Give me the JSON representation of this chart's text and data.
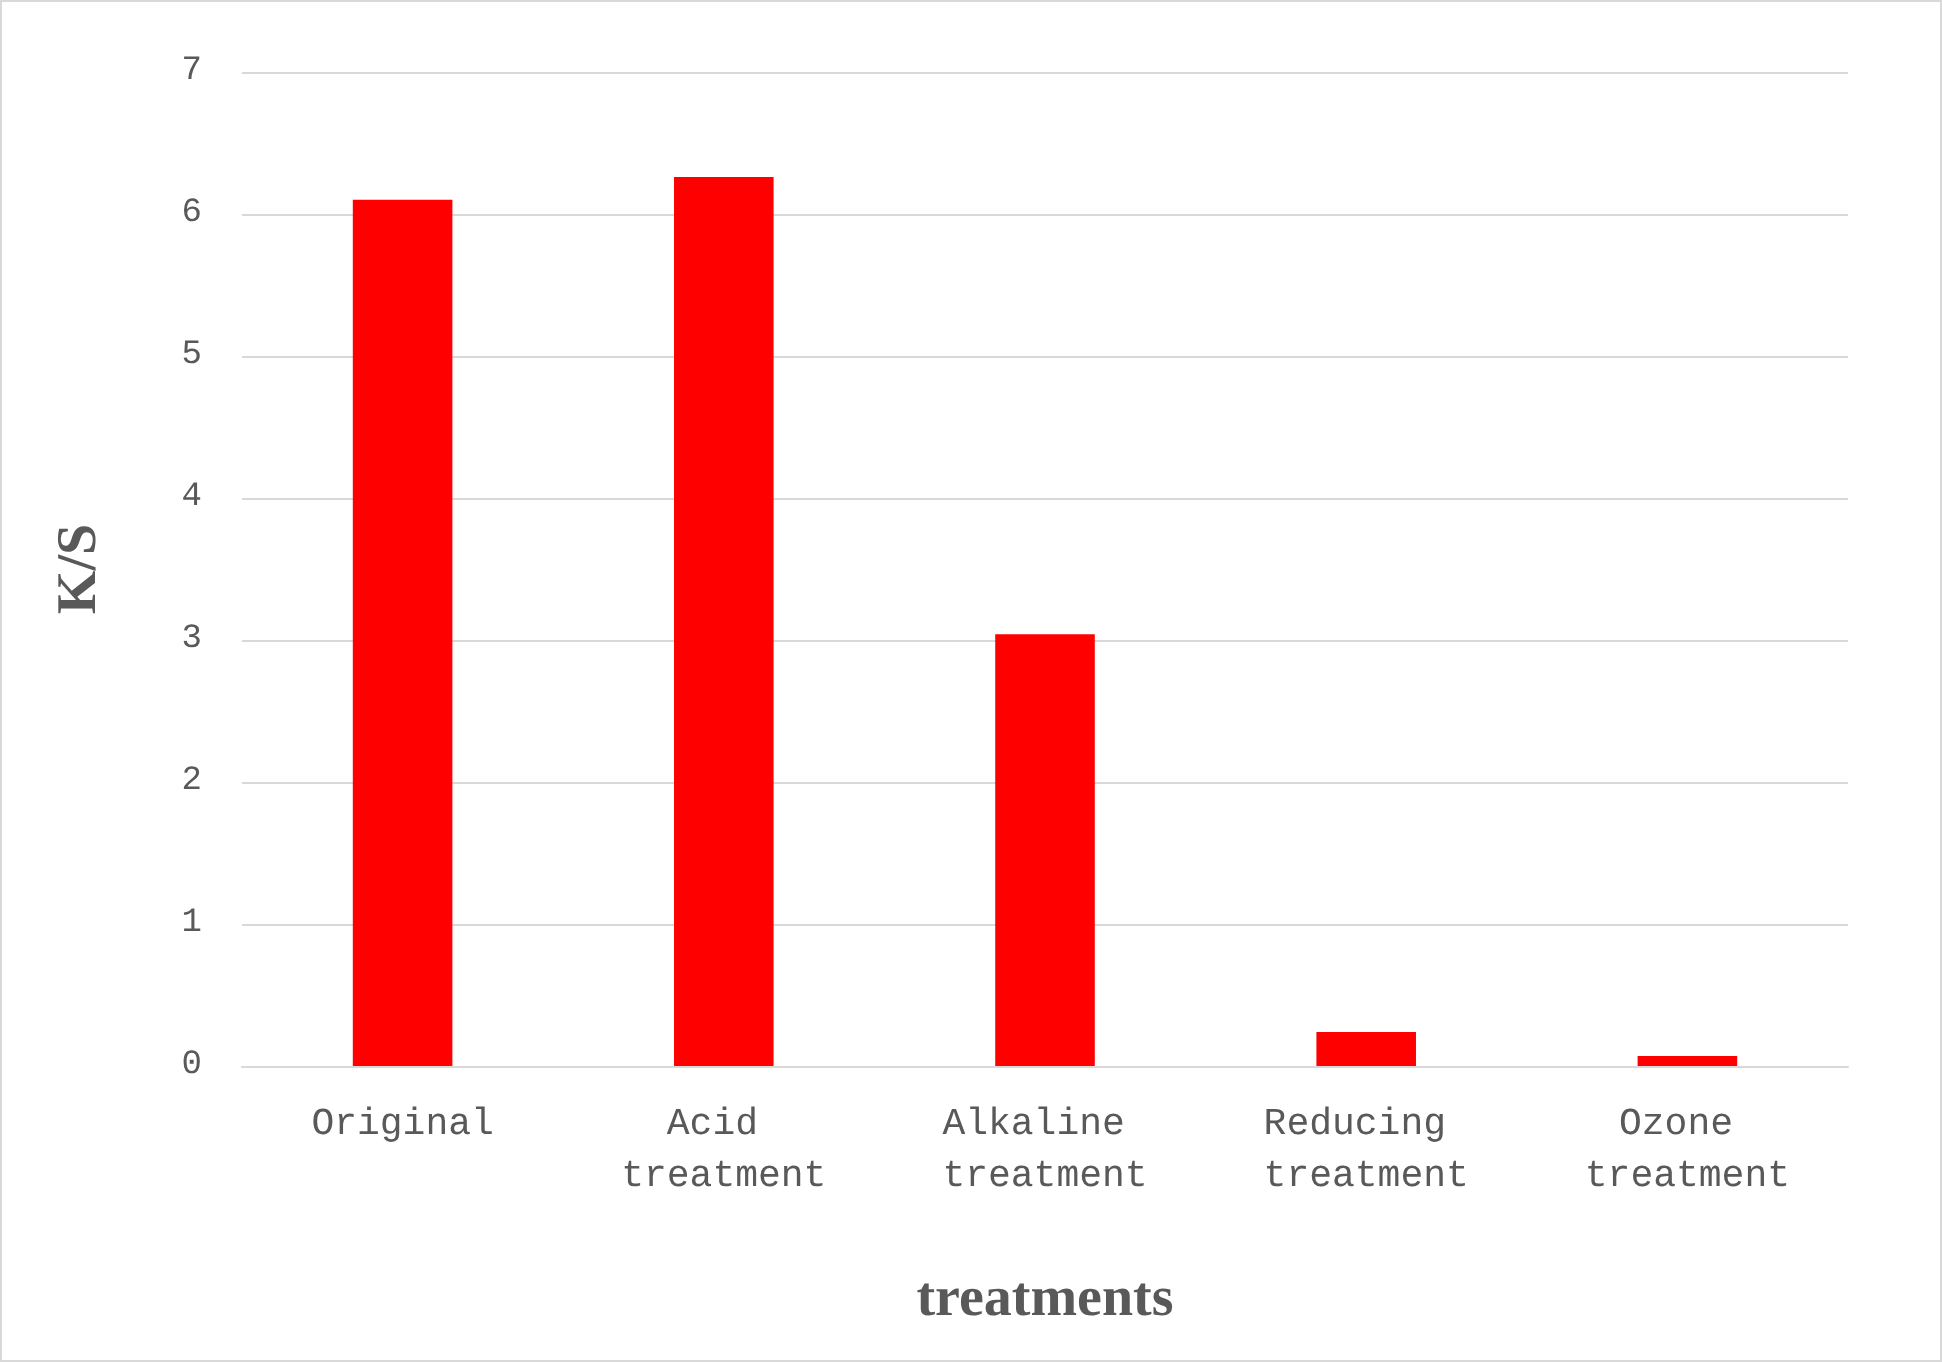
{
  "chart_data": {
    "type": "bar",
    "xlabel": "treatments",
    "ylabel": "K/S",
    "categories": [
      "Original",
      "Acid treatment",
      "Alkaline treatment",
      "Reducing treatment",
      "Ozone treatment"
    ],
    "values": [
      6.1,
      6.26,
      3.04,
      0.24,
      0.07
    ],
    "color": "#ff0000",
    "ylim": [
      0,
      7
    ],
    "yticks": [
      0,
      1,
      2,
      3,
      4,
      5,
      6,
      7
    ],
    "grid": "y"
  }
}
